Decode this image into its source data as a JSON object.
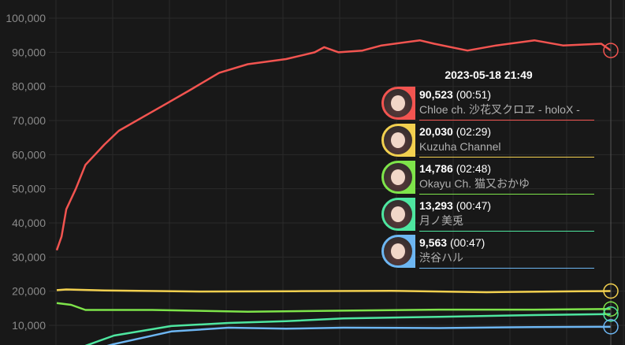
{
  "chart_data": {
    "type": "line",
    "title": "",
    "xlabel": "",
    "ylabel": "",
    "ylim": [
      4000,
      100000
    ],
    "xlim": [
      0,
      58
    ],
    "grid": true,
    "y_ticks": [
      "10,000",
      "20,000",
      "30,000",
      "40,000",
      "50,000",
      "60,000",
      "70,000",
      "80,000",
      "90,000",
      "100,000"
    ],
    "y_tick_values": [
      10000,
      20000,
      30000,
      40000,
      50000,
      60000,
      70000,
      80000,
      90000,
      100000
    ],
    "series": [
      {
        "name": "Chloe ch. 沙花叉クロヱ - holoX -",
        "color": "#f25450",
        "x": [
          0,
          0.5,
          1,
          2,
          3,
          5,
          6.5,
          9,
          11.5,
          14,
          17,
          20,
          24,
          27,
          28,
          29.5,
          32,
          34,
          38,
          39.5,
          43,
          46,
          50,
          53,
          57,
          58
        ],
        "y": [
          32000,
          36000,
          44000,
          50000,
          57000,
          63000,
          67000,
          71000,
          75000,
          79000,
          84000,
          86500,
          88000,
          90000,
          91500,
          90000,
          90500,
          92000,
          93500,
          92500,
          90500,
          92000,
          93500,
          92000,
          92500,
          90523
        ]
      },
      {
        "name": "Kuzuha Channel",
        "color": "#f2d04f",
        "x": [
          0,
          1,
          5,
          15,
          25,
          35,
          45,
          55,
          58
        ],
        "y": [
          20300,
          20500,
          20200,
          19900,
          20000,
          20100,
          19700,
          20000,
          20030
        ]
      },
      {
        "name": "Okayu Ch. 猫又おかゆ",
        "color": "#7ee44a",
        "x": [
          0,
          1.5,
          3,
          10,
          20,
          30,
          40,
          50,
          58
        ],
        "y": [
          16500,
          16000,
          14500,
          14500,
          14000,
          14300,
          14600,
          14600,
          14786
        ]
      },
      {
        "name": "月ノ美兎",
        "color": "#4ee6a0",
        "x": [
          1,
          3,
          6,
          12,
          18,
          24,
          30,
          40,
          50,
          58
        ],
        "y": [
          0,
          4000,
          7000,
          9800,
          10700,
          11200,
          12000,
          12500,
          13000,
          13293
        ]
      },
      {
        "name": "渋谷ハル",
        "color": "#6db6f2",
        "x": [
          4,
          6,
          12,
          18,
          24,
          30,
          40,
          50,
          58
        ],
        "y": [
          3000,
          4500,
          8200,
          9300,
          9000,
          9300,
          9200,
          9500,
          9563
        ]
      }
    ]
  },
  "tooltip": {
    "title": "2023-05-18 21:49",
    "rows": [
      {
        "value": "90,523",
        "time": "(00:51)",
        "name": "Chloe ch. 沙花叉クロヱ - holoX -",
        "color": "#f25450"
      },
      {
        "value": "20,030",
        "time": "(02:29)",
        "name": "Kuzuha Channel",
        "color": "#f2d04f"
      },
      {
        "value": "14,786",
        "time": "(02:48)",
        "name": "Okayu Ch. 猫又おかゆ",
        "color": "#7ee44a"
      },
      {
        "value": "13,293",
        "time": "(00:47)",
        "name": "月ノ美兎",
        "color": "#4ee6a0"
      },
      {
        "value": "9,563",
        "time": "(00:47)",
        "name": "渋谷ハル",
        "color": "#6db6f2"
      }
    ]
  }
}
